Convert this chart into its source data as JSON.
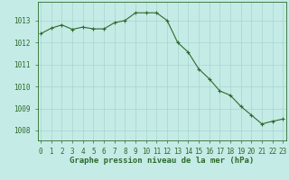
{
  "x": [
    0,
    1,
    2,
    3,
    4,
    5,
    6,
    7,
    8,
    9,
    10,
    11,
    12,
    13,
    14,
    15,
    16,
    17,
    18,
    19,
    20,
    21,
    22,
    23
  ],
  "y": [
    1012.4,
    1012.65,
    1012.8,
    1012.6,
    1012.7,
    1012.62,
    1012.62,
    1012.9,
    1013.0,
    1013.35,
    1013.35,
    1013.35,
    1013.0,
    1012.0,
    1011.56,
    1010.8,
    1010.35,
    1009.8,
    1009.6,
    1009.1,
    1008.7,
    1008.3,
    1008.42,
    1008.52
  ],
  "line_color": "#2d6a2d",
  "marker": "+",
  "bg_color": "#c5ebe6",
  "grid_color": "#a8d5ce",
  "title": "Graphe pression niveau de la mer (hPa)",
  "xlabel_ticks": [
    "0",
    "1",
    "2",
    "3",
    "4",
    "5",
    "6",
    "7",
    "8",
    "9",
    "10",
    "11",
    "12",
    "13",
    "14",
    "15",
    "16",
    "17",
    "18",
    "19",
    "20",
    "21",
    "22",
    "23"
  ],
  "yticks": [
    1008,
    1009,
    1010,
    1011,
    1012,
    1013
  ],
  "ylim": [
    1007.55,
    1013.85
  ],
  "xlim": [
    -0.3,
    23.3
  ],
  "tick_color": "#2d6a2d",
  "title_color": "#2d6a2d",
  "title_fontsize": 6.5,
  "tick_fontsize": 5.5,
  "linewidth": 0.8,
  "markersize": 3.5
}
